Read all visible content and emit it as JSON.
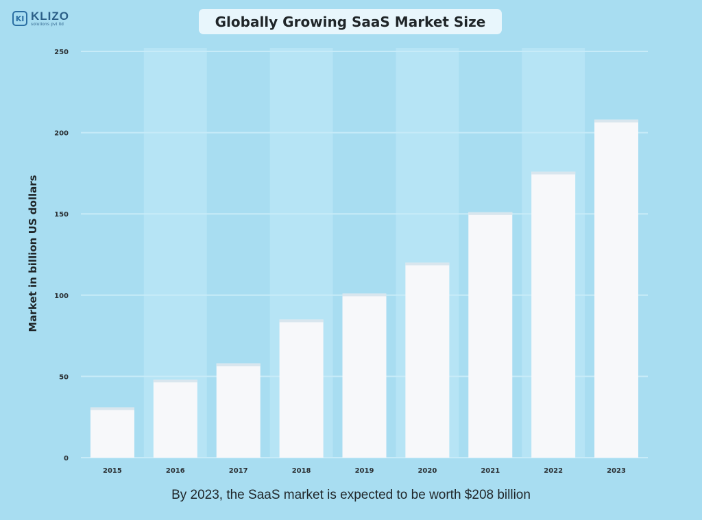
{
  "brand": {
    "mark": "KI",
    "name": "KLIZO",
    "sub": "solutions pvt ltd"
  },
  "footer_text": "By 2023, the SaaS market is expected to be worth $208 billion",
  "colors": {
    "background": "#a8ddf1",
    "bar": "#f7f8fa",
    "bar_top": "#d9e6ee",
    "alt_band": "#b6e4f5",
    "gridline": "#c7ebf8"
  },
  "chart_data": {
    "type": "bar",
    "title": "Globally Growing SaaS Market Size",
    "xlabel": "",
    "ylabel": "Market in billion US dollars",
    "categories": [
      "2015",
      "2016",
      "2017",
      "2018",
      "2019",
      "2020",
      "2021",
      "2022",
      "2023"
    ],
    "values": [
      31,
      48,
      58,
      85,
      101,
      120,
      151,
      176,
      208
    ],
    "ylim": [
      0,
      250
    ],
    "yticks": [
      "0",
      "50",
      "100",
      "150",
      "200",
      "250"
    ],
    "ytick_values": [
      0,
      50,
      100,
      150,
      200,
      250
    ],
    "grid": true
  }
}
